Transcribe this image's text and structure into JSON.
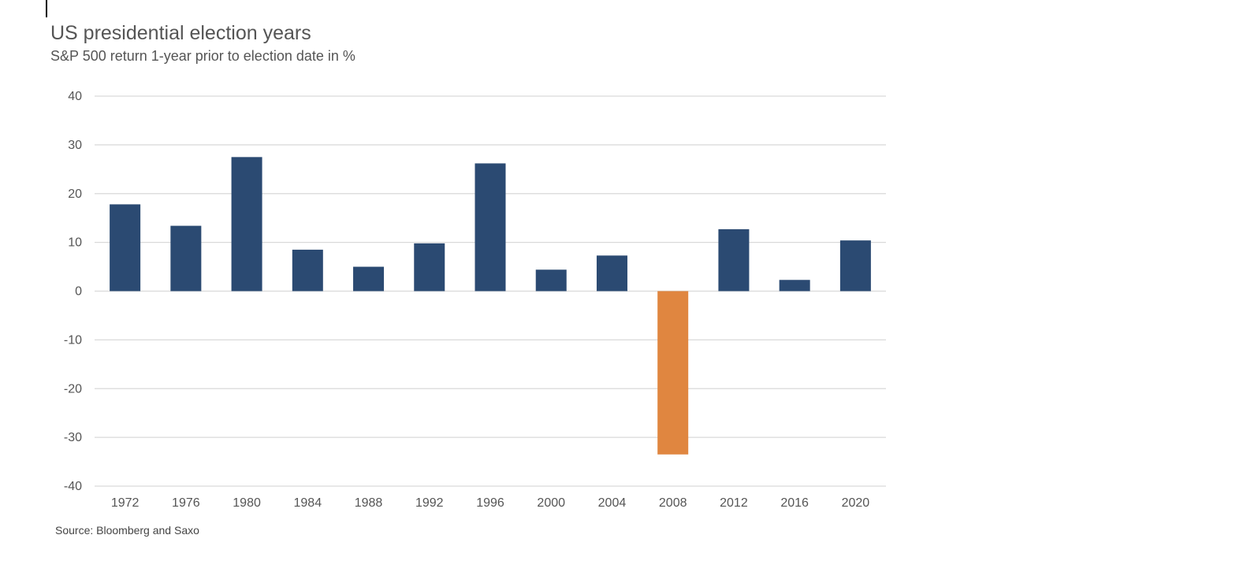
{
  "chart_data": {
    "type": "bar",
    "title": "US presidential election years",
    "subtitle": "S&P 500 return 1-year prior to election date in %",
    "source": "Source: Bloomberg and Saxo",
    "categories": [
      "1972",
      "1976",
      "1980",
      "1984",
      "1988",
      "1992",
      "1996",
      "2000",
      "2004",
      "2008",
      "2012",
      "2016",
      "2020"
    ],
    "values": [
      17.8,
      13.4,
      27.5,
      8.5,
      5.0,
      9.8,
      26.2,
      4.4,
      7.3,
      -33.5,
      12.7,
      2.3,
      10.4
    ],
    "yticks": [
      "40",
      "30",
      "20",
      "10",
      "0",
      "-10",
      "-20",
      "-30",
      "-40"
    ],
    "ylim": [
      -40,
      40
    ],
    "grid": true,
    "colors": {
      "positive": "#2b4a72",
      "negative": "#e08640",
      "grid": "#d9d9d9",
      "text": "#555555"
    }
  }
}
